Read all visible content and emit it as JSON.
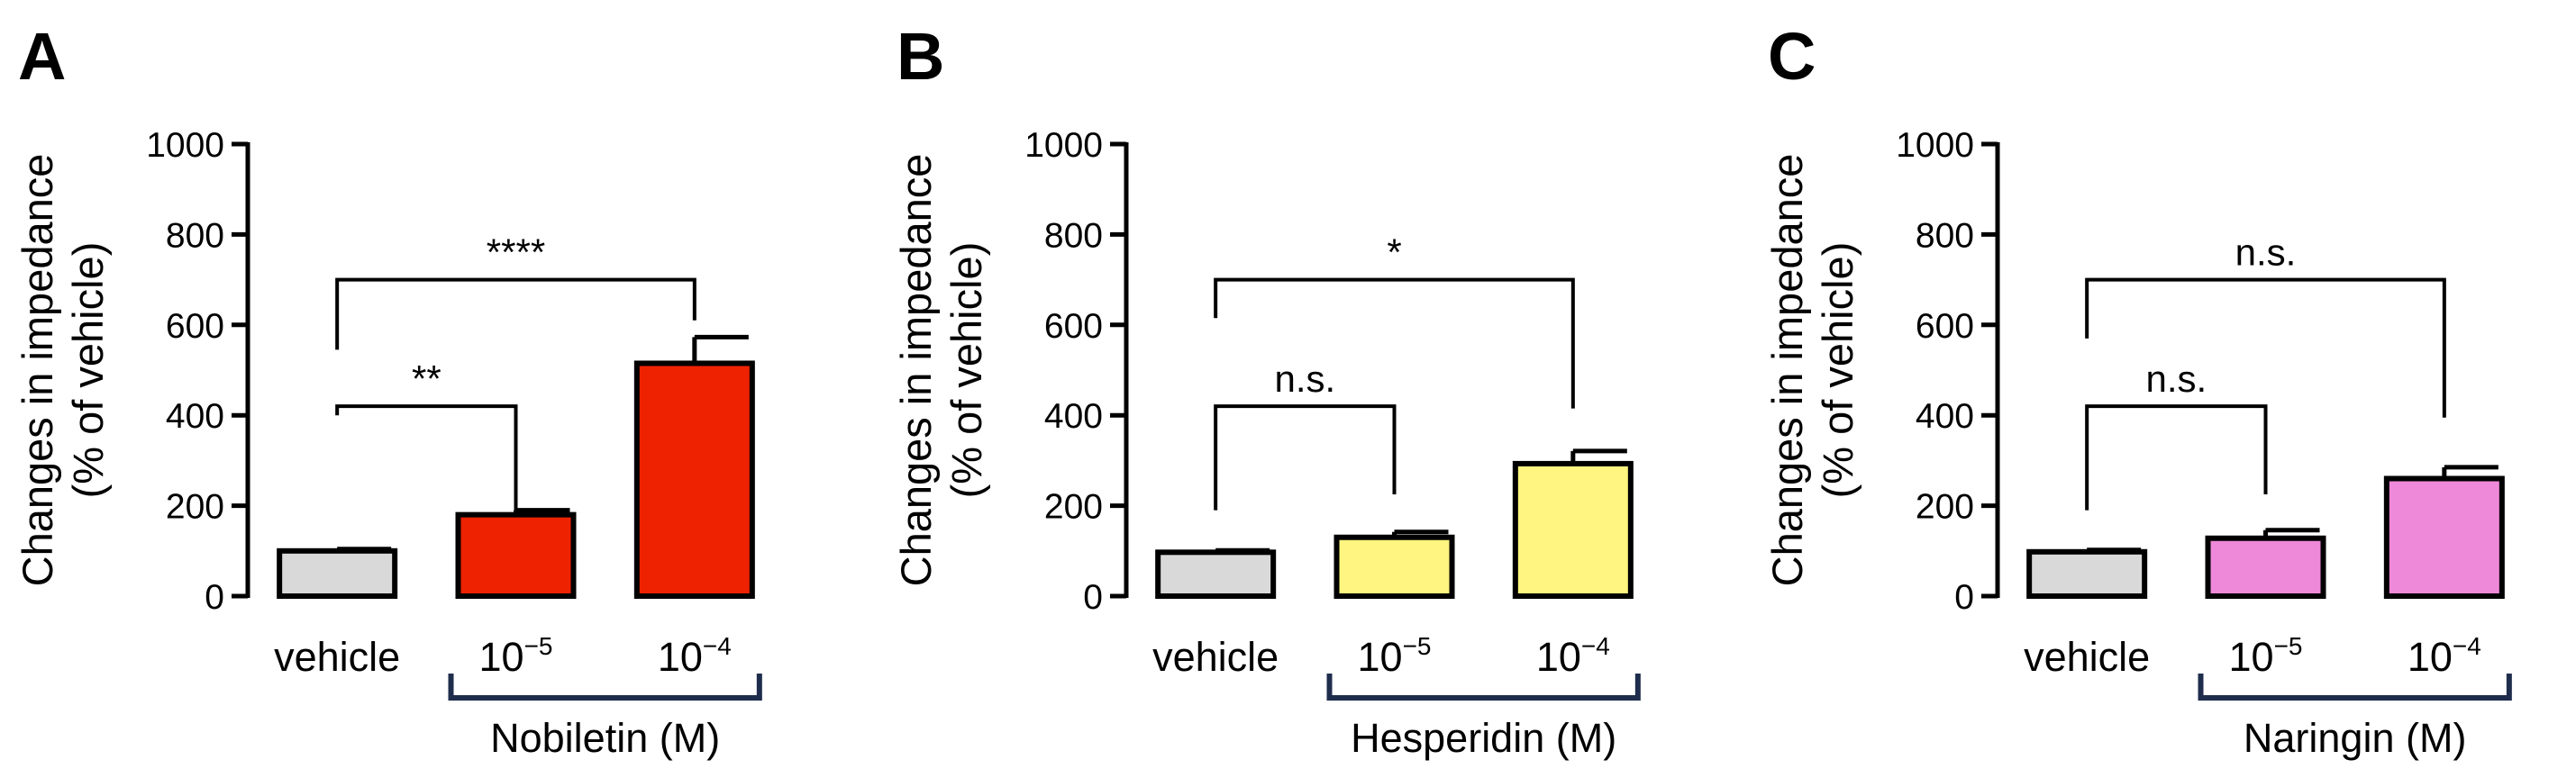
{
  "chart_data": [
    {
      "type": "bar",
      "panel": "A",
      "ylabel": [
        "Changes in impedance",
        "(% of vehicle)"
      ],
      "yticks": [
        "0",
        "200",
        "400",
        "600",
        "800",
        "1000"
      ],
      "ylim": [
        0,
        1000
      ],
      "categories": [
        "vehicle",
        "10",
        "10"
      ],
      "category_exponents": [
        "",
        "−5",
        "−4"
      ],
      "values": [
        100,
        180,
        515
      ],
      "errors": [
        4,
        10,
        58
      ],
      "colors": [
        "#d9d9d9",
        "#ee2200",
        "#ee2200"
      ],
      "group_label": "Nobiletin (M)",
      "comparisons": [
        {
          "from": 0,
          "to": 1,
          "label": "**",
          "y": 420,
          "left_y": 400,
          "right_y": 190
        },
        {
          "from": 0,
          "to": 2,
          "label": "****",
          "y": 700,
          "left_y": 545,
          "right_y": 610
        }
      ]
    },
    {
      "type": "bar",
      "panel": "B",
      "ylabel": [
        "Changes in impedance",
        "(% of vehicle)"
      ],
      "yticks": [
        "0",
        "200",
        "400",
        "600",
        "800",
        "1000"
      ],
      "ylim": [
        0,
        1000
      ],
      "categories": [
        "vehicle",
        "10",
        "10"
      ],
      "category_exponents": [
        "",
        "−5",
        "−4"
      ],
      "values": [
        97,
        130,
        293
      ],
      "errors": [
        4,
        12,
        28
      ],
      "colors": [
        "#d9d9d9",
        "#fff580",
        "#fff580"
      ],
      "group_label": "Hesperidin (M)",
      "comparisons": [
        {
          "from": 0,
          "to": 1,
          "label": "n.s.",
          "y": 420,
          "left_y": 190,
          "right_y": 225
        },
        {
          "from": 0,
          "to": 2,
          "label": "*",
          "y": 700,
          "left_y": 615,
          "right_y": 415
        }
      ]
    },
    {
      "type": "bar",
      "panel": "C",
      "ylabel": [
        "Changes in impedance",
        "(% of vehicle)"
      ],
      "yticks": [
        "0",
        "200",
        "400",
        "600",
        "800",
        "1000"
      ],
      "ylim": [
        0,
        1000
      ],
      "categories": [
        "vehicle",
        "10",
        "10"
      ],
      "category_exponents": [
        "",
        "−5",
        "−4"
      ],
      "values": [
        98,
        128,
        260
      ],
      "errors": [
        4,
        18,
        25
      ],
      "colors": [
        "#d9d9d9",
        "#ee88d8",
        "#ee88d8"
      ],
      "group_label": "Naringin (M)",
      "comparisons": [
        {
          "from": 0,
          "to": 1,
          "label": "n.s.",
          "y": 420,
          "left_y": 190,
          "right_y": 225
        },
        {
          "from": 0,
          "to": 2,
          "label": "n.s.",
          "y": 700,
          "left_y": 570,
          "right_y": 395
        }
      ]
    }
  ]
}
